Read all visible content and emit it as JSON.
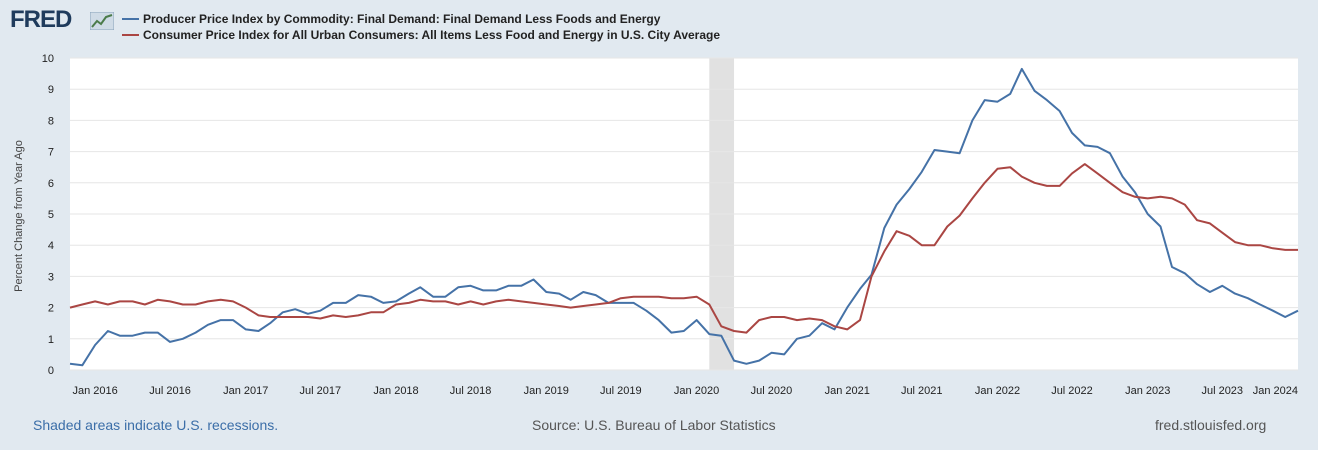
{
  "logo": {
    "text": "FRED"
  },
  "chart_data": {
    "type": "line",
    "ylabel": "Percent Change from Year Ago",
    "ylim": [
      0,
      10
    ],
    "yticks": [
      0,
      1,
      2,
      3,
      4,
      5,
      6,
      7,
      8,
      9,
      10
    ],
    "xrange": [
      "2015-11-01",
      "2024-01-01"
    ],
    "xticks": [
      {
        "date": "2016-01-01",
        "label": "Jan 2016"
      },
      {
        "date": "2016-07-01",
        "label": "Jul 2016"
      },
      {
        "date": "2017-01-01",
        "label": "Jan 2017"
      },
      {
        "date": "2017-07-01",
        "label": "Jul 2017"
      },
      {
        "date": "2018-01-01",
        "label": "Jan 2018"
      },
      {
        "date": "2018-07-01",
        "label": "Jul 2018"
      },
      {
        "date": "2019-01-01",
        "label": "Jan 2019"
      },
      {
        "date": "2019-07-01",
        "label": "Jul 2019"
      },
      {
        "date": "2020-01-01",
        "label": "Jan 2020"
      },
      {
        "date": "2020-07-01",
        "label": "Jul 2020"
      },
      {
        "date": "2021-01-01",
        "label": "Jan 2021"
      },
      {
        "date": "2021-07-01",
        "label": "Jul 2021"
      },
      {
        "date": "2022-01-01",
        "label": "Jan 2022"
      },
      {
        "date": "2022-07-01",
        "label": "Jul 2022"
      },
      {
        "date": "2023-01-01",
        "label": "Jan 2023"
      },
      {
        "date": "2023-07-01",
        "label": "Jul 2023"
      },
      {
        "date": "2024-01-01",
        "label": "Jan 2024"
      }
    ],
    "recession": {
      "start": "2020-02-01",
      "end": "2020-04-01",
      "color": "#e1e1e1"
    },
    "grid": true,
    "start": "2015-11-01",
    "frequency": "monthly",
    "series": [
      {
        "name": "Producer Price Index by Commodity: Final Demand: Final Demand Less Foods and Energy",
        "color": "#4572a7",
        "values": [
          0.2,
          0.15,
          0.8,
          1.25,
          1.1,
          1.1,
          1.2,
          1.2,
          0.9,
          1.0,
          1.2,
          1.45,
          1.6,
          1.6,
          1.3,
          1.25,
          1.5,
          1.85,
          1.95,
          1.8,
          1.9,
          2.15,
          2.15,
          2.4,
          2.35,
          2.15,
          2.2,
          2.45,
          2.65,
          2.35,
          2.35,
          2.65,
          2.7,
          2.55,
          2.55,
          2.7,
          2.7,
          2.9,
          2.5,
          2.45,
          2.25,
          2.5,
          2.4,
          2.15,
          2.15,
          2.15,
          1.9,
          1.6,
          1.2,
          1.25,
          1.6,
          1.15,
          1.1,
          0.3,
          0.2,
          0.3,
          0.55,
          0.5,
          1.0,
          1.1,
          1.5,
          1.3,
          2.0,
          2.6,
          3.05,
          4.55,
          5.3,
          5.8,
          6.35,
          7.05,
          7.0,
          6.95,
          8.0,
          8.65,
          8.6,
          8.85,
          9.65,
          8.95,
          8.65,
          8.3,
          7.6,
          7.2,
          7.15,
          6.95,
          6.2,
          5.7,
          5.0,
          4.6,
          3.3,
          3.1,
          2.75,
          2.5,
          2.7,
          2.45,
          2.3,
          2.1,
          1.9,
          1.7,
          1.9
        ]
      },
      {
        "name": "Consumer Price Index for All Urban Consumers: All Items Less Food and Energy in U.S. City Average",
        "color": "#aa4643",
        "values": [
          2.0,
          2.1,
          2.2,
          2.1,
          2.2,
          2.2,
          2.1,
          2.25,
          2.2,
          2.1,
          2.1,
          2.2,
          2.25,
          2.2,
          2.0,
          1.75,
          1.7,
          1.7,
          1.7,
          1.7,
          1.65,
          1.75,
          1.7,
          1.75,
          1.85,
          1.85,
          2.1,
          2.15,
          2.25,
          2.2,
          2.2,
          2.1,
          2.2,
          2.1,
          2.2,
          2.25,
          2.2,
          2.15,
          2.1,
          2.05,
          2.0,
          2.05,
          2.1,
          2.15,
          2.3,
          2.35,
          2.35,
          2.35,
          2.3,
          2.3,
          2.35,
          2.1,
          1.4,
          1.25,
          1.2,
          1.6,
          1.7,
          1.7,
          1.6,
          1.65,
          1.6,
          1.4,
          1.3,
          1.6,
          3.0,
          3.8,
          4.45,
          4.3,
          4.0,
          4.0,
          4.6,
          4.95,
          5.5,
          6.0,
          6.45,
          6.5,
          6.2,
          6.0,
          5.9,
          5.9,
          6.3,
          6.6,
          6.3,
          6.0,
          5.7,
          5.55,
          5.5,
          5.55,
          5.5,
          5.3,
          4.8,
          4.7,
          4.4,
          4.1,
          4.0,
          4.0,
          3.9,
          3.85,
          3.85
        ]
      }
    ]
  },
  "footer": {
    "left": "Shaded areas indicate U.S. recessions.",
    "middle": "Source: U.S. Bureau of Labor Statistics",
    "right": "fred.stlouisfed.org"
  }
}
